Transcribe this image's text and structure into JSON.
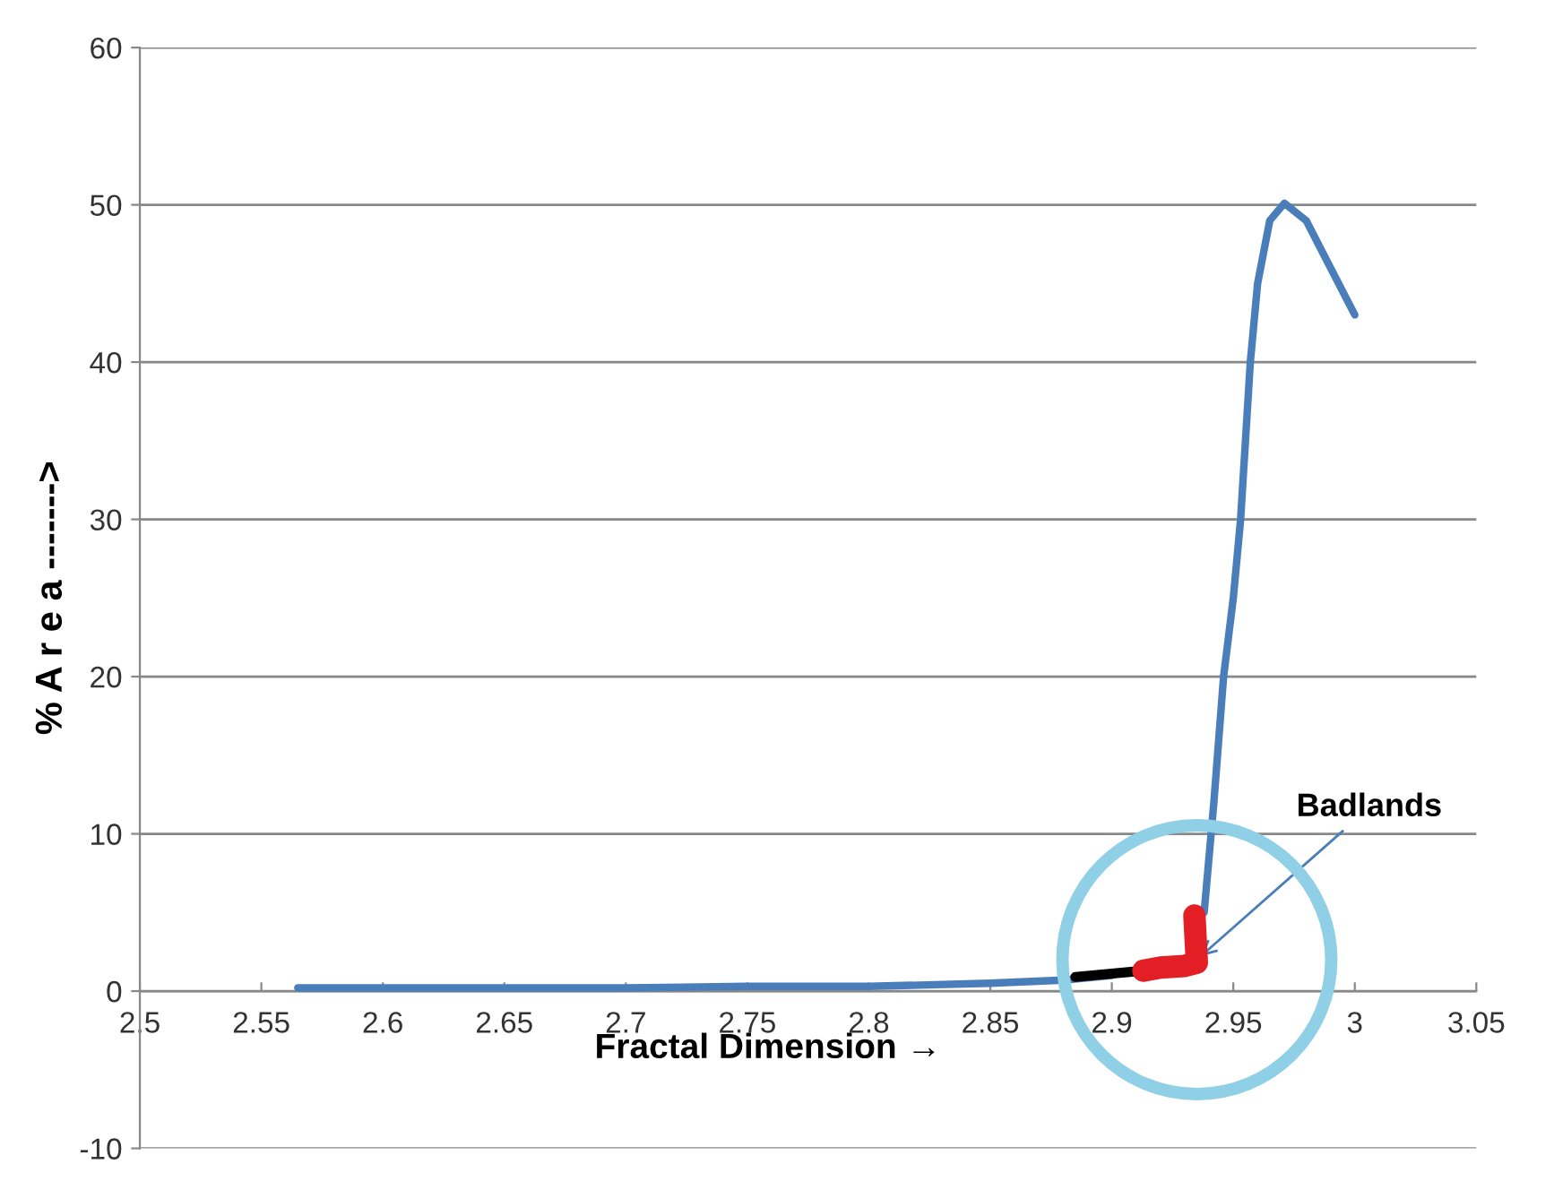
{
  "chart_data": {
    "type": "line",
    "xlabel": "Fractal Dimension →",
    "ylabel": "% A r e a ------->",
    "xlim": [
      2.5,
      3.05
    ],
    "xticks": [
      2.5,
      2.55,
      2.6,
      2.65,
      2.7,
      2.75,
      2.8,
      2.85,
      2.9,
      2.95,
      3,
      3.05
    ],
    "ylim": [
      -10,
      60
    ],
    "yticks": [
      -10,
      0,
      10,
      20,
      30,
      40,
      50,
      60
    ],
    "grid": "y",
    "marker": "none",
    "line_style": "solid",
    "series": [
      {
        "color": "#4a7ebb",
        "x": [
          2.565,
          2.6,
          2.65,
          2.7,
          2.75,
          2.8,
          2.85,
          2.88,
          2.9,
          2.92,
          2.935,
          2.938,
          2.942,
          2.946,
          2.95,
          2.953,
          2.957,
          2.96,
          2.965,
          2.971,
          2.98,
          2.99,
          3.0
        ],
        "values": [
          0.2,
          0.2,
          0.2,
          0.2,
          0.3,
          0.3,
          0.5,
          0.7,
          1.0,
          null,
          null,
          5,
          12,
          20,
          25,
          30,
          40,
          45,
          49,
          50.1,
          49,
          46,
          43
        ]
      },
      {
        "color": "#000000",
        "x": [
          2.885,
          2.913
        ],
        "values": [
          0.9,
          1.3
        ]
      },
      {
        "color": "#e31e24",
        "x": [
          2.913,
          2.92,
          2.93,
          2.935,
          2.934
        ],
        "values": [
          1.3,
          1.5,
          1.6,
          1.8,
          4.8
        ]
      }
    ],
    "annotations": [
      {
        "text": "Badlands",
        "x": 2.935,
        "y": 2
      }
    ]
  }
}
